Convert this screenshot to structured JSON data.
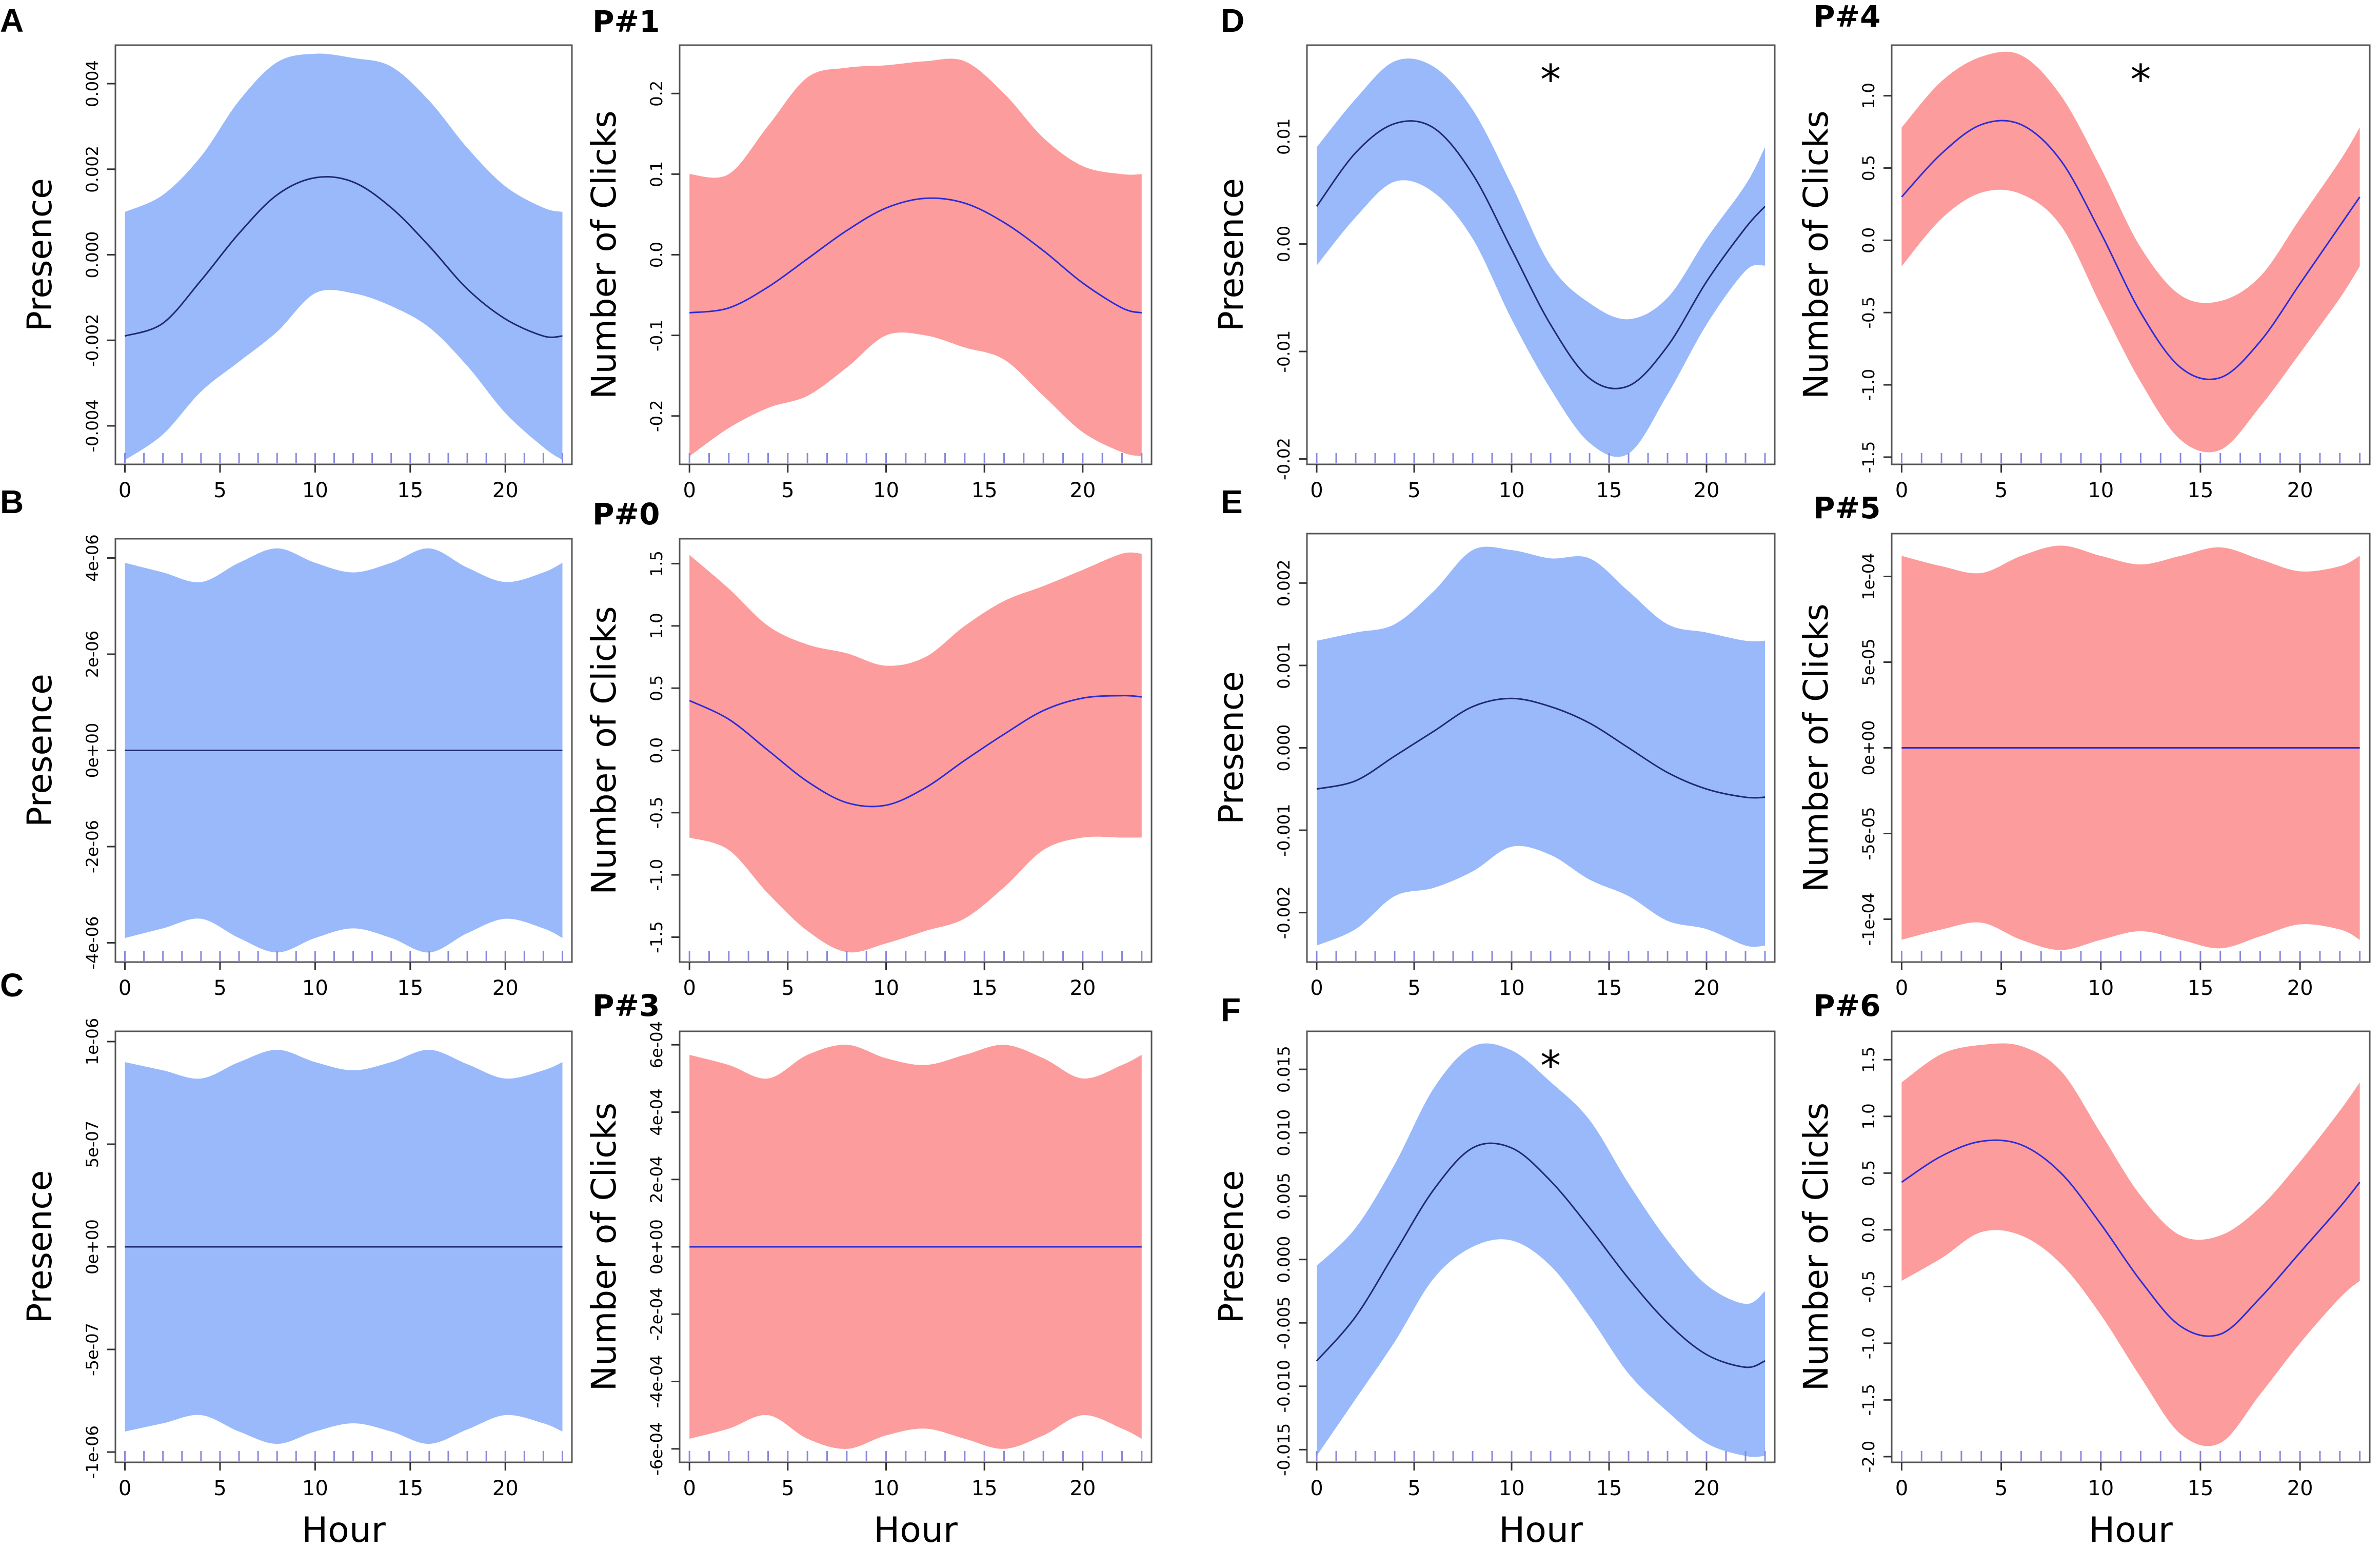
{
  "colors": {
    "presence_band": "#99b9fb",
    "presence_line": "#1f2a6e",
    "clicks_band": "#fc9c9c",
    "clicks_line": "#2a2cd8",
    "rug": "#8888dd",
    "frame": "#555555"
  },
  "chart_data": [
    {
      "id": "A",
      "panel_label": "A",
      "type": "area",
      "variable": "presence",
      "title": "",
      "xlabel": "",
      "ylabel": "Presence",
      "xlim": [
        -0.5,
        23.5
      ],
      "ylim": [
        -0.0049,
        0.0049
      ],
      "xticks": [
        0,
        5,
        10,
        15,
        20
      ],
      "yticks": [
        -0.004,
        -0.002,
        0.0,
        0.002,
        0.004
      ],
      "ytick_labels": [
        "-0.004",
        "-0.002",
        "0.000",
        "0.002",
        "0.004"
      ],
      "significant": false,
      "x": [
        0,
        2,
        4,
        6,
        8,
        10,
        12,
        14,
        16,
        18,
        20,
        22,
        23
      ],
      "fit": [
        -0.0019,
        -0.0016,
        -0.0006,
        0.0005,
        0.0014,
        0.0018,
        0.0017,
        0.0011,
        0.0002,
        -0.0008,
        -0.0015,
        -0.0019,
        -0.0019
      ],
      "upper": [
        0.001,
        0.0014,
        0.0023,
        0.0036,
        0.0045,
        0.0047,
        0.0046,
        0.0044,
        0.0036,
        0.0025,
        0.0016,
        0.0011,
        0.001
      ],
      "lower": [
        -0.0048,
        -0.0042,
        -0.0032,
        -0.0025,
        -0.0018,
        -0.0009,
        -0.0009,
        -0.0012,
        -0.0017,
        -0.0026,
        -0.0037,
        -0.0045,
        -0.0048
      ]
    },
    {
      "id": "P1",
      "panel_label": "P#1",
      "type": "area",
      "variable": "clicks",
      "title": "",
      "xlabel": "",
      "ylabel": "Number of Clicks",
      "xlim": [
        -0.5,
        23.5
      ],
      "ylim": [
        -0.26,
        0.26
      ],
      "xticks": [
        0,
        5,
        10,
        15,
        20
      ],
      "yticks": [
        -0.2,
        -0.1,
        0.0,
        0.1,
        0.2
      ],
      "ytick_labels": [
        "-0.2",
        "-0.1",
        "0.0",
        "0.1",
        "0.2"
      ],
      "significant": false,
      "x": [
        0,
        2,
        4,
        6,
        8,
        10,
        12,
        14,
        16,
        18,
        20,
        22,
        23
      ],
      "fit": [
        -0.072,
        -0.066,
        -0.04,
        -0.005,
        0.03,
        0.058,
        0.07,
        0.064,
        0.04,
        0.005,
        -0.035,
        -0.066,
        -0.072
      ],
      "upper": [
        0.1,
        0.1,
        0.16,
        0.22,
        0.232,
        0.235,
        0.24,
        0.24,
        0.2,
        0.145,
        0.11,
        0.1,
        0.1
      ],
      "lower": [
        -0.25,
        -0.215,
        -0.19,
        -0.175,
        -0.14,
        -0.1,
        -0.1,
        -0.115,
        -0.13,
        -0.175,
        -0.22,
        -0.245,
        -0.25
      ]
    },
    {
      "id": "B",
      "panel_label": "B",
      "type": "area",
      "variable": "presence",
      "title": "",
      "xlabel": "",
      "ylabel": "Presence",
      "xlim": [
        -0.5,
        23.5
      ],
      "ylim": [
        -4.4e-06,
        4.4e-06
      ],
      "xticks": [
        0,
        5,
        10,
        15,
        20
      ],
      "yticks": [
        -4e-06,
        -2e-06,
        0,
        2e-06,
        4e-06
      ],
      "ytick_labels": [
        "-4e-06",
        "-2e-06",
        "0e+00",
        "2e-06",
        "4e-06"
      ],
      "significant": false,
      "x": [
        0,
        2,
        4,
        6,
        8,
        10,
        12,
        14,
        16,
        18,
        20,
        22,
        23
      ],
      "fit": [
        0,
        0,
        0,
        0,
        0,
        0,
        0,
        0,
        0,
        0,
        0,
        0,
        0
      ],
      "upper": [
        3.9e-06,
        3.7e-06,
        3.5e-06,
        3.9e-06,
        4.2e-06,
        3.9e-06,
        3.7e-06,
        3.9e-06,
        4.2e-06,
        3.8e-06,
        3.5e-06,
        3.7e-06,
        3.9e-06
      ],
      "lower": [
        -3.9e-06,
        -3.7e-06,
        -3.5e-06,
        -3.9e-06,
        -4.2e-06,
        -3.9e-06,
        -3.7e-06,
        -3.9e-06,
        -4.2e-06,
        -3.8e-06,
        -3.5e-06,
        -3.7e-06,
        -3.9e-06
      ]
    },
    {
      "id": "P0",
      "panel_label": "P#0",
      "type": "area",
      "variable": "clicks",
      "title": "",
      "xlabel": "",
      "ylabel": "Number of Clicks",
      "xlim": [
        -0.5,
        23.5
      ],
      "ylim": [
        -1.7,
        1.7
      ],
      "xticks": [
        0,
        5,
        10,
        15,
        20
      ],
      "yticks": [
        -1.5,
        -1.0,
        -0.5,
        0.0,
        0.5,
        1.0,
        1.5
      ],
      "ytick_labels": [
        "-1.5",
        "-1.0",
        "-0.5",
        "0.0",
        "0.5",
        "1.0",
        "1.5"
      ],
      "significant": false,
      "x": [
        0,
        2,
        4,
        6,
        8,
        10,
        12,
        14,
        16,
        18,
        20,
        22,
        23
      ],
      "fit": [
        0.4,
        0.25,
        0.0,
        -0.25,
        -0.42,
        -0.44,
        -0.3,
        -0.08,
        0.13,
        0.32,
        0.42,
        0.44,
        0.43
      ],
      "upper": [
        1.57,
        1.3,
        1.0,
        0.85,
        0.78,
        0.68,
        0.75,
        1.0,
        1.2,
        1.32,
        1.45,
        1.58,
        1.58
      ],
      "lower": [
        -0.7,
        -0.8,
        -1.15,
        -1.45,
        -1.62,
        -1.55,
        -1.45,
        -1.35,
        -1.1,
        -0.8,
        -0.7,
        -0.7,
        -0.7
      ]
    },
    {
      "id": "C",
      "panel_label": "C",
      "type": "area",
      "variable": "presence",
      "title": "",
      "xlabel": "Hour",
      "ylabel": "Presence",
      "xlim": [
        -0.5,
        23.5
      ],
      "ylim": [
        -1.05e-06,
        1.05e-06
      ],
      "xticks": [
        0,
        5,
        10,
        15,
        20
      ],
      "yticks": [
        -1e-06,
        -5e-07,
        0,
        5e-07,
        1e-06
      ],
      "ytick_labels": [
        "-1e-06",
        "-5e-07",
        "0e+00",
        "5e-07",
        "1e-06"
      ],
      "significant": false,
      "x": [
        0,
        2,
        4,
        6,
        8,
        10,
        12,
        14,
        16,
        18,
        20,
        22,
        23
      ],
      "fit": [
        0,
        0,
        0,
        0,
        0,
        0,
        0,
        0,
        0,
        0,
        0,
        0,
        0
      ],
      "upper": [
        9e-07,
        8.6e-07,
        8.2e-07,
        9e-07,
        9.6e-07,
        9e-07,
        8.6e-07,
        9e-07,
        9.6e-07,
        8.9e-07,
        8.2e-07,
        8.6e-07,
        9e-07
      ],
      "lower": [
        -9e-07,
        -8.6e-07,
        -8.2e-07,
        -9e-07,
        -9.6e-07,
        -9e-07,
        -8.6e-07,
        -9e-07,
        -9.6e-07,
        -8.9e-07,
        -8.2e-07,
        -8.6e-07,
        -9e-07
      ]
    },
    {
      "id": "P3",
      "panel_label": "P#3",
      "type": "area",
      "variable": "clicks",
      "title": "",
      "xlabel": "Hour",
      "ylabel": "Number of Clicks",
      "xlim": [
        -0.5,
        23.5
      ],
      "ylim": [
        -0.00064,
        0.00064
      ],
      "xticks": [
        0,
        5,
        10,
        15,
        20
      ],
      "yticks": [
        -0.0006,
        -0.0004,
        -0.0002,
        0,
        0.0002,
        0.0004,
        0.0006
      ],
      "ytick_labels": [
        "-6e-04",
        "-4e-04",
        "-2e-04",
        "0e+00",
        "2e-04",
        "4e-04",
        "6e-04"
      ],
      "significant": false,
      "x": [
        0,
        2,
        4,
        6,
        8,
        10,
        12,
        14,
        16,
        18,
        20,
        22,
        23
      ],
      "fit": [
        0,
        0,
        0,
        0,
        0,
        0,
        0,
        0,
        0,
        0,
        0,
        0,
        0
      ],
      "upper": [
        0.00057,
        0.00054,
        0.0005,
        0.00057,
        0.0006,
        0.00056,
        0.00054,
        0.00057,
        0.0006,
        0.00056,
        0.0005,
        0.00054,
        0.00057
      ],
      "lower": [
        -0.00057,
        -0.00054,
        -0.0005,
        -0.00057,
        -0.0006,
        -0.00056,
        -0.00054,
        -0.00057,
        -0.0006,
        -0.00056,
        -0.0005,
        -0.00054,
        -0.00057
      ]
    },
    {
      "id": "D",
      "panel_label": "D",
      "type": "area",
      "variable": "presence",
      "title": "",
      "xlabel": "",
      "ylabel": "Presence",
      "xlim": [
        -0.5,
        23.5
      ],
      "ylim": [
        -0.0205,
        0.0185
      ],
      "xticks": [
        0,
        5,
        10,
        15,
        20
      ],
      "yticks": [
        -0.02,
        -0.01,
        0.0,
        0.01
      ],
      "ytick_labels": [
        "-0.02",
        "-0.01",
        "0.00",
        "0.01"
      ],
      "significant": true,
      "x": [
        0,
        2,
        4,
        6,
        8,
        10,
        12,
        14,
        16,
        18,
        20,
        22,
        23
      ],
      "fit": [
        0.0035,
        0.0085,
        0.0112,
        0.0108,
        0.0065,
        -0.0005,
        -0.0075,
        -0.0125,
        -0.0132,
        -0.0095,
        -0.0035,
        0.0015,
        0.0035
      ],
      "upper": [
        0.009,
        0.0135,
        0.017,
        0.0165,
        0.0125,
        0.0055,
        -0.002,
        -0.0055,
        -0.007,
        -0.005,
        0.0005,
        0.0055,
        0.009
      ],
      "lower": [
        -0.002,
        0.0025,
        0.0058,
        0.0048,
        0.0005,
        -0.007,
        -0.0135,
        -0.0185,
        -0.0195,
        -0.014,
        -0.0075,
        -0.0025,
        -0.002
      ]
    },
    {
      "id": "P4",
      "panel_label": "P#4",
      "type": "area",
      "variable": "clicks",
      "title": "",
      "xlabel": "",
      "ylabel": "Number of Clicks",
      "xlim": [
        -0.5,
        23.5
      ],
      "ylim": [
        -1.55,
        1.35
      ],
      "xticks": [
        0,
        5,
        10,
        15,
        20
      ],
      "yticks": [
        -1.5,
        -1.0,
        -0.5,
        0.0,
        0.5,
        1.0
      ],
      "ytick_labels": [
        "-1.5",
        "-1.0",
        "-0.5",
        "0.0",
        "0.5",
        "1.0"
      ],
      "significant": true,
      "x": [
        0,
        2,
        4,
        6,
        8,
        10,
        12,
        14,
        16,
        18,
        20,
        22,
        23
      ],
      "fit": [
        0.3,
        0.6,
        0.8,
        0.8,
        0.55,
        0.05,
        -0.5,
        -0.88,
        -0.95,
        -0.7,
        -0.3,
        0.1,
        0.3
      ],
      "upper": [
        0.78,
        1.1,
        1.27,
        1.28,
        1.0,
        0.5,
        -0.05,
        -0.38,
        -0.42,
        -0.25,
        0.15,
        0.55,
        0.78
      ],
      "lower": [
        -0.18,
        0.15,
        0.33,
        0.32,
        0.1,
        -0.45,
        -0.98,
        -1.38,
        -1.45,
        -1.15,
        -0.78,
        -0.4,
        -0.18
      ]
    },
    {
      "id": "E",
      "panel_label": "E",
      "type": "area",
      "variable": "presence",
      "title": "",
      "xlabel": "",
      "ylabel": "Presence",
      "xlim": [
        -0.5,
        23.5
      ],
      "ylim": [
        -0.0026,
        0.0026
      ],
      "xticks": [
        0,
        5,
        10,
        15,
        20
      ],
      "yticks": [
        -0.002,
        -0.001,
        0.0,
        0.001,
        0.002
      ],
      "ytick_labels": [
        "-0.002",
        "-0.001",
        "0.000",
        "0.001",
        "0.002"
      ],
      "significant": false,
      "x": [
        0,
        2,
        4,
        6,
        8,
        10,
        12,
        14,
        16,
        18,
        20,
        22,
        23
      ],
      "fit": [
        -0.0005,
        -0.0004,
        -0.0001,
        0.0002,
        0.0005,
        0.0006,
        0.0005,
        0.0003,
        0.0,
        -0.0003,
        -0.0005,
        -0.0006,
        -0.0006
      ],
      "upper": [
        0.0013,
        0.0014,
        0.0015,
        0.0019,
        0.0024,
        0.0024,
        0.0023,
        0.0023,
        0.0019,
        0.0015,
        0.0014,
        0.0013,
        0.0013
      ],
      "lower": [
        -0.0024,
        -0.0022,
        -0.0018,
        -0.0017,
        -0.0015,
        -0.0012,
        -0.0013,
        -0.0016,
        -0.0018,
        -0.0021,
        -0.0022,
        -0.0024,
        -0.0024
      ]
    },
    {
      "id": "P5",
      "panel_label": "P#5",
      "type": "area",
      "variable": "clicks",
      "title": "",
      "xlabel": "",
      "ylabel": "Number of Clicks",
      "xlim": [
        -0.5,
        23.5
      ],
      "ylim": [
        -0.000125,
        0.000125
      ],
      "xticks": [
        0,
        5,
        10,
        15,
        20
      ],
      "yticks": [
        -0.0001,
        -5e-05,
        0,
        5e-05,
        0.0001
      ],
      "ytick_labels": [
        "-1e-04",
        "-5e-05",
        "0e+00",
        "5e-05",
        "1e-04"
      ],
      "significant": false,
      "x": [
        0,
        2,
        4,
        6,
        8,
        10,
        12,
        14,
        16,
        18,
        20,
        22,
        23
      ],
      "fit": [
        0,
        0,
        0,
        0,
        0,
        0,
        0,
        0,
        0,
        0,
        0,
        0,
        0
      ],
      "upper": [
        0.000112,
        0.000106,
        0.000102,
        0.000112,
        0.000118,
        0.000112,
        0.000107,
        0.000112,
        0.000117,
        0.00011,
        0.000103,
        0.000106,
        0.000112
      ],
      "lower": [
        -0.000112,
        -0.000106,
        -0.000102,
        -0.000112,
        -0.000118,
        -0.000112,
        -0.000107,
        -0.000112,
        -0.000117,
        -0.00011,
        -0.000103,
        -0.000106,
        -0.000112
      ]
    },
    {
      "id": "F",
      "panel_label": "F",
      "type": "area",
      "variable": "presence",
      "title": "",
      "xlabel": "Hour",
      "ylabel": "Presence",
      "xlim": [
        -0.5,
        23.5
      ],
      "ylim": [
        -0.016,
        0.018
      ],
      "xticks": [
        0,
        5,
        10,
        15,
        20
      ],
      "yticks": [
        -0.015,
        -0.01,
        -0.005,
        0.0,
        0.005,
        0.01,
        0.015
      ],
      "ytick_labels": [
        "-0.015",
        "-0.010",
        "-0.005",
        "0.000",
        "0.005",
        "0.010",
        "0.015"
      ],
      "significant": true,
      "x": [
        0,
        2,
        4,
        6,
        8,
        10,
        12,
        14,
        16,
        18,
        20,
        22,
        23
      ],
      "fit": [
        -0.008,
        -0.0045,
        0.0005,
        0.0055,
        0.0088,
        0.0088,
        0.0062,
        0.0025,
        -0.0015,
        -0.005,
        -0.0075,
        -0.0085,
        -0.008
      ],
      "upper": [
        -0.0005,
        0.0025,
        0.0075,
        0.0135,
        0.0168,
        0.0165,
        0.014,
        0.011,
        0.006,
        0.0015,
        -0.002,
        -0.0035,
        -0.0025
      ],
      "lower": [
        -0.0155,
        -0.011,
        -0.0065,
        -0.0015,
        0.001,
        0.0015,
        -0.0005,
        -0.0045,
        -0.009,
        -0.012,
        -0.0145,
        -0.0155,
        -0.0155
      ]
    },
    {
      "id": "P6",
      "panel_label": "P#6",
      "type": "area",
      "variable": "clicks",
      "title": "",
      "xlabel": "Hour",
      "ylabel": "Number of Clicks",
      "xlim": [
        -0.5,
        23.5
      ],
      "ylim": [
        -2.05,
        1.75
      ],
      "xticks": [
        0,
        5,
        10,
        15,
        20
      ],
      "yticks": [
        -2.0,
        -1.5,
        -1.0,
        -0.5,
        0.0,
        0.5,
        1.0,
        1.5
      ],
      "ytick_labels": [
        "-2.0",
        "-1.5",
        "-1.0",
        "-0.5",
        "0.0",
        "0.5",
        "1.0",
        "1.5"
      ],
      "significant": false,
      "x": [
        0,
        2,
        4,
        6,
        8,
        10,
        12,
        14,
        16,
        18,
        20,
        22,
        23
      ],
      "fit": [
        0.42,
        0.65,
        0.78,
        0.75,
        0.5,
        0.05,
        -0.45,
        -0.85,
        -0.92,
        -0.6,
        -0.2,
        0.2,
        0.42
      ],
      "upper": [
        1.3,
        1.55,
        1.63,
        1.62,
        1.4,
        0.85,
        0.3,
        -0.05,
        -0.05,
        0.2,
        0.6,
        1.05,
        1.3
      ],
      "lower": [
        -0.45,
        -0.25,
        -0.02,
        -0.05,
        -0.3,
        -0.75,
        -1.3,
        -1.8,
        -1.88,
        -1.45,
        -1.0,
        -0.6,
        -0.45
      ]
    }
  ]
}
